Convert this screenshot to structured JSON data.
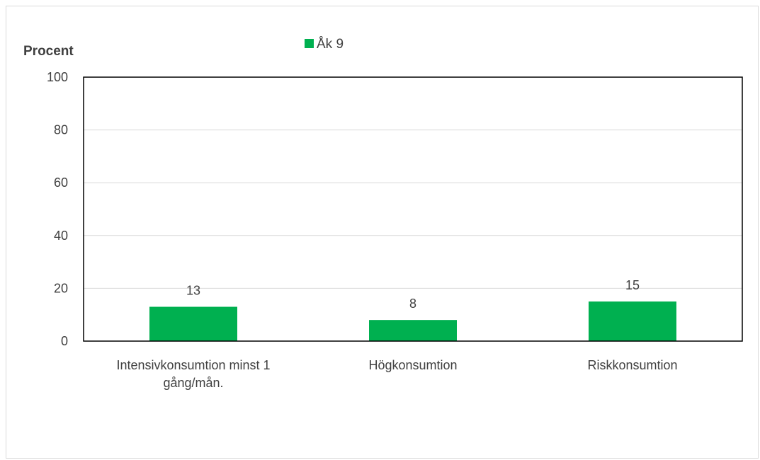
{
  "chart_data": {
    "type": "bar",
    "categories": [
      [
        "Intensivkonsumtion minst 1",
        "gång/mån."
      ],
      [
        "Högkonsumtion"
      ],
      [
        "Riskkonsumtion"
      ]
    ],
    "series": [
      {
        "name": "Åk 9",
        "values": [
          13,
          8,
          15
        ],
        "color": "#00b050"
      }
    ],
    "ylabel": "Procent",
    "ylim": [
      0,
      100
    ],
    "yticks": [
      "0",
      "20",
      "40",
      "60",
      "80",
      "100"
    ],
    "grid": true,
    "legend_position": "top"
  }
}
